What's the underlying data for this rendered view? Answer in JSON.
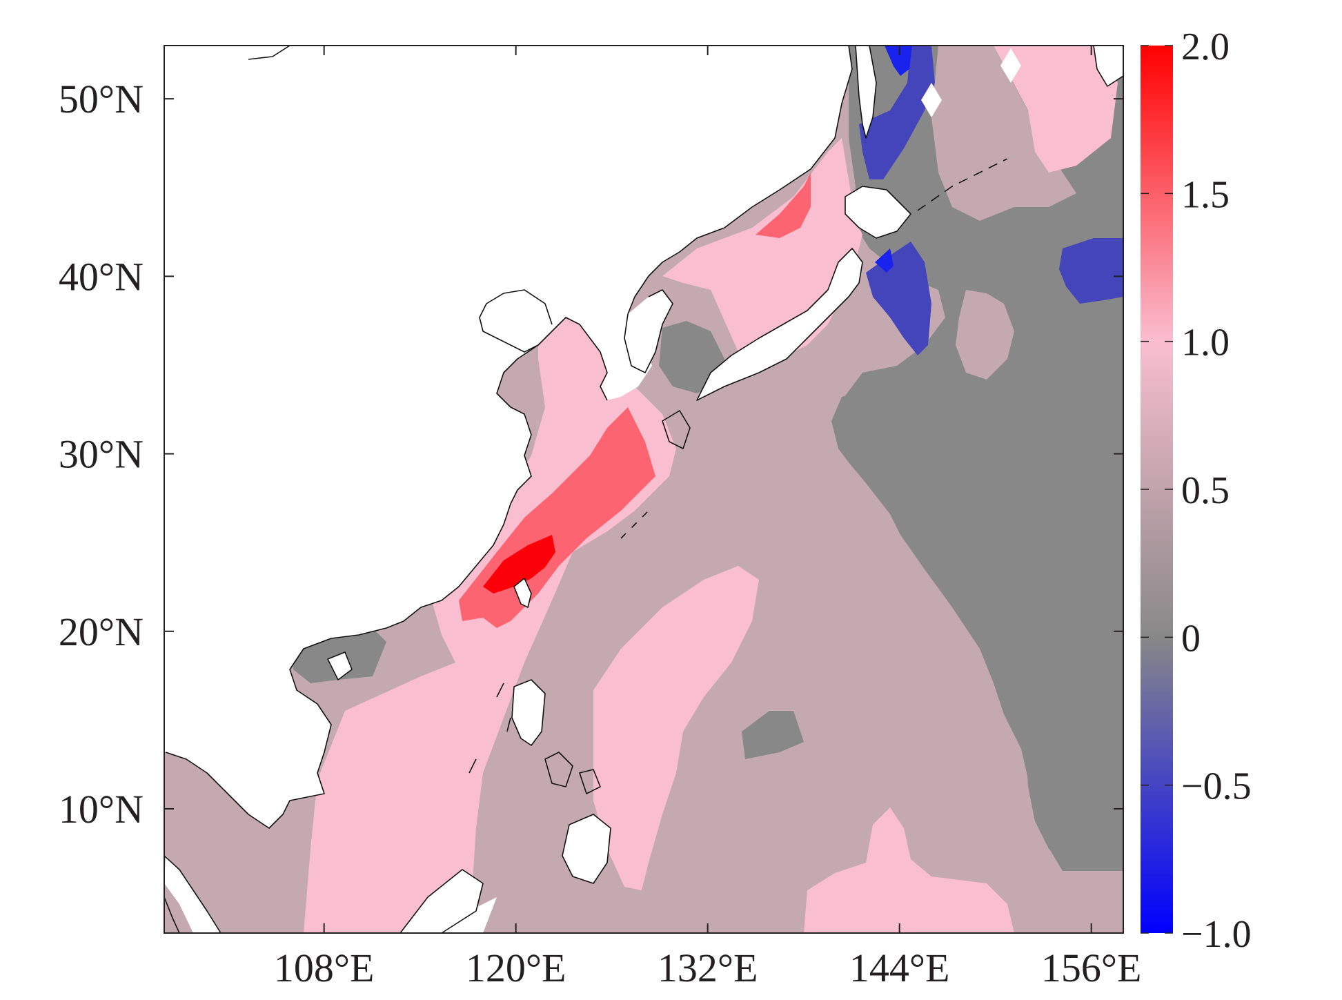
{
  "map": {
    "type": "filled-contour map",
    "lon_range_deg_e": [
      98,
      158
    ],
    "lat_range_deg_n": [
      3,
      53
    ],
    "lon_ticks": [
      {
        "value": 108,
        "label": "108°E"
      },
      {
        "value": 120,
        "label": "120°E"
      },
      {
        "value": 132,
        "label": "132°E"
      },
      {
        "value": 144,
        "label": "144°E"
      },
      {
        "value": 156,
        "label": "156°E"
      }
    ],
    "lat_ticks": [
      {
        "value": 50,
        "label": "50°N"
      },
      {
        "value": 40,
        "label": "40°N"
      },
      {
        "value": 30,
        "label": "30°N"
      },
      {
        "value": 20,
        "label": "20°N"
      },
      {
        "value": 10,
        "label": "10°N"
      }
    ],
    "land_color": "#ffffff",
    "regions": [
      {
        "name": "base",
        "level": "0.25-0.75",
        "color": "#c4a9b1"
      },
      {
        "name": "NE Pacific grey",
        "level": "0-0.25",
        "color": "#888888"
      },
      {
        "name": "SCS pink",
        "level": "0.75-1.25",
        "color": "#f9bed0"
      },
      {
        "name": "Philippine Sea pink",
        "level": "0.75-1.25",
        "color": "#f9bed0"
      },
      {
        "name": "East China Sea red",
        "level": "1.25-1.75",
        "color": "#fb6470"
      },
      {
        "name": "Taiwan Strait core",
        "level": ">1.75",
        "color": "#fb0009"
      },
      {
        "name": "Japan Sea red",
        "level": "1.25-1.75",
        "color": "#fb6470"
      },
      {
        "name": "Hokkaido blue",
        "level": "-0.75 to -0.25",
        "color": "#4444bb"
      },
      {
        "name": "Okhotsk blue",
        "level": "<-0.75",
        "color": "#1a22ee"
      }
    ]
  },
  "colorbar": {
    "ticks": [
      {
        "value": 2.0,
        "label": "2.0"
      },
      {
        "value": 1.5,
        "label": "1.5"
      },
      {
        "value": 1.0,
        "label": "1.0"
      },
      {
        "value": 0.5,
        "label": "0.5"
      },
      {
        "value": 0,
        "label": "0"
      },
      {
        "value": -0.5,
        "label": "−0.5"
      },
      {
        "value": -1.0,
        "label": "−1.0"
      }
    ],
    "range": [
      -1.0,
      2.0
    ],
    "colors": {
      "max": "#ff0000",
      "mid_high": "#f9bed0",
      "zero": "#888888",
      "min": "#0000ff"
    }
  }
}
